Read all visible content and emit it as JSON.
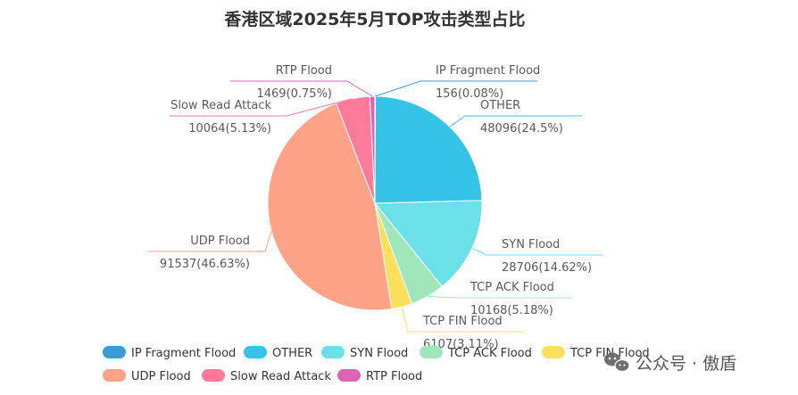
{
  "chart_data": {
    "type": "pie",
    "title": "香港区域2025年5月TOP攻击类型占比",
    "start_angle_deg": 90,
    "direction": "clockwise",
    "legend_position": "bottom",
    "slices": [
      {
        "name": "IP Fragment Flood",
        "value": 156,
        "percent": "0.08%",
        "label": "156(0.08%)",
        "color": "#3b9bd9"
      },
      {
        "name": "OTHER",
        "value": 48096,
        "percent": "24.5%",
        "label": "48096(24.5%)",
        "color": "#35c4e8"
      },
      {
        "name": "SYN Flood",
        "value": 28706,
        "percent": "14.62%",
        "label": "28706(14.62%)",
        "color": "#6be0e8"
      },
      {
        "name": "TCP ACK Flood",
        "value": 10168,
        "percent": "5.18%",
        "label": "10168(5.18%)",
        "color": "#a0e6bb"
      },
      {
        "name": "TCP FIN Flood",
        "value": 6107,
        "percent": "3.11%",
        "label": "6107(3.11%)",
        "color": "#fcdf5c"
      },
      {
        "name": "UDP Flood",
        "value": 91537,
        "percent": "46.63%",
        "label": "91537(46.63%)",
        "color": "#fea387"
      },
      {
        "name": "Slow Read Attack",
        "value": 10064,
        "percent": "5.13%",
        "label": "10064(5.13%)",
        "color": "#fe7a9a"
      },
      {
        "name": "RTP Flood",
        "value": 1469,
        "percent": "0.75%",
        "label": "1469(0.75%)",
        "color": "#e062b5"
      }
    ]
  },
  "watermark": {
    "icon": "wechat-icon",
    "text": "公众号 · 傲盾"
  }
}
